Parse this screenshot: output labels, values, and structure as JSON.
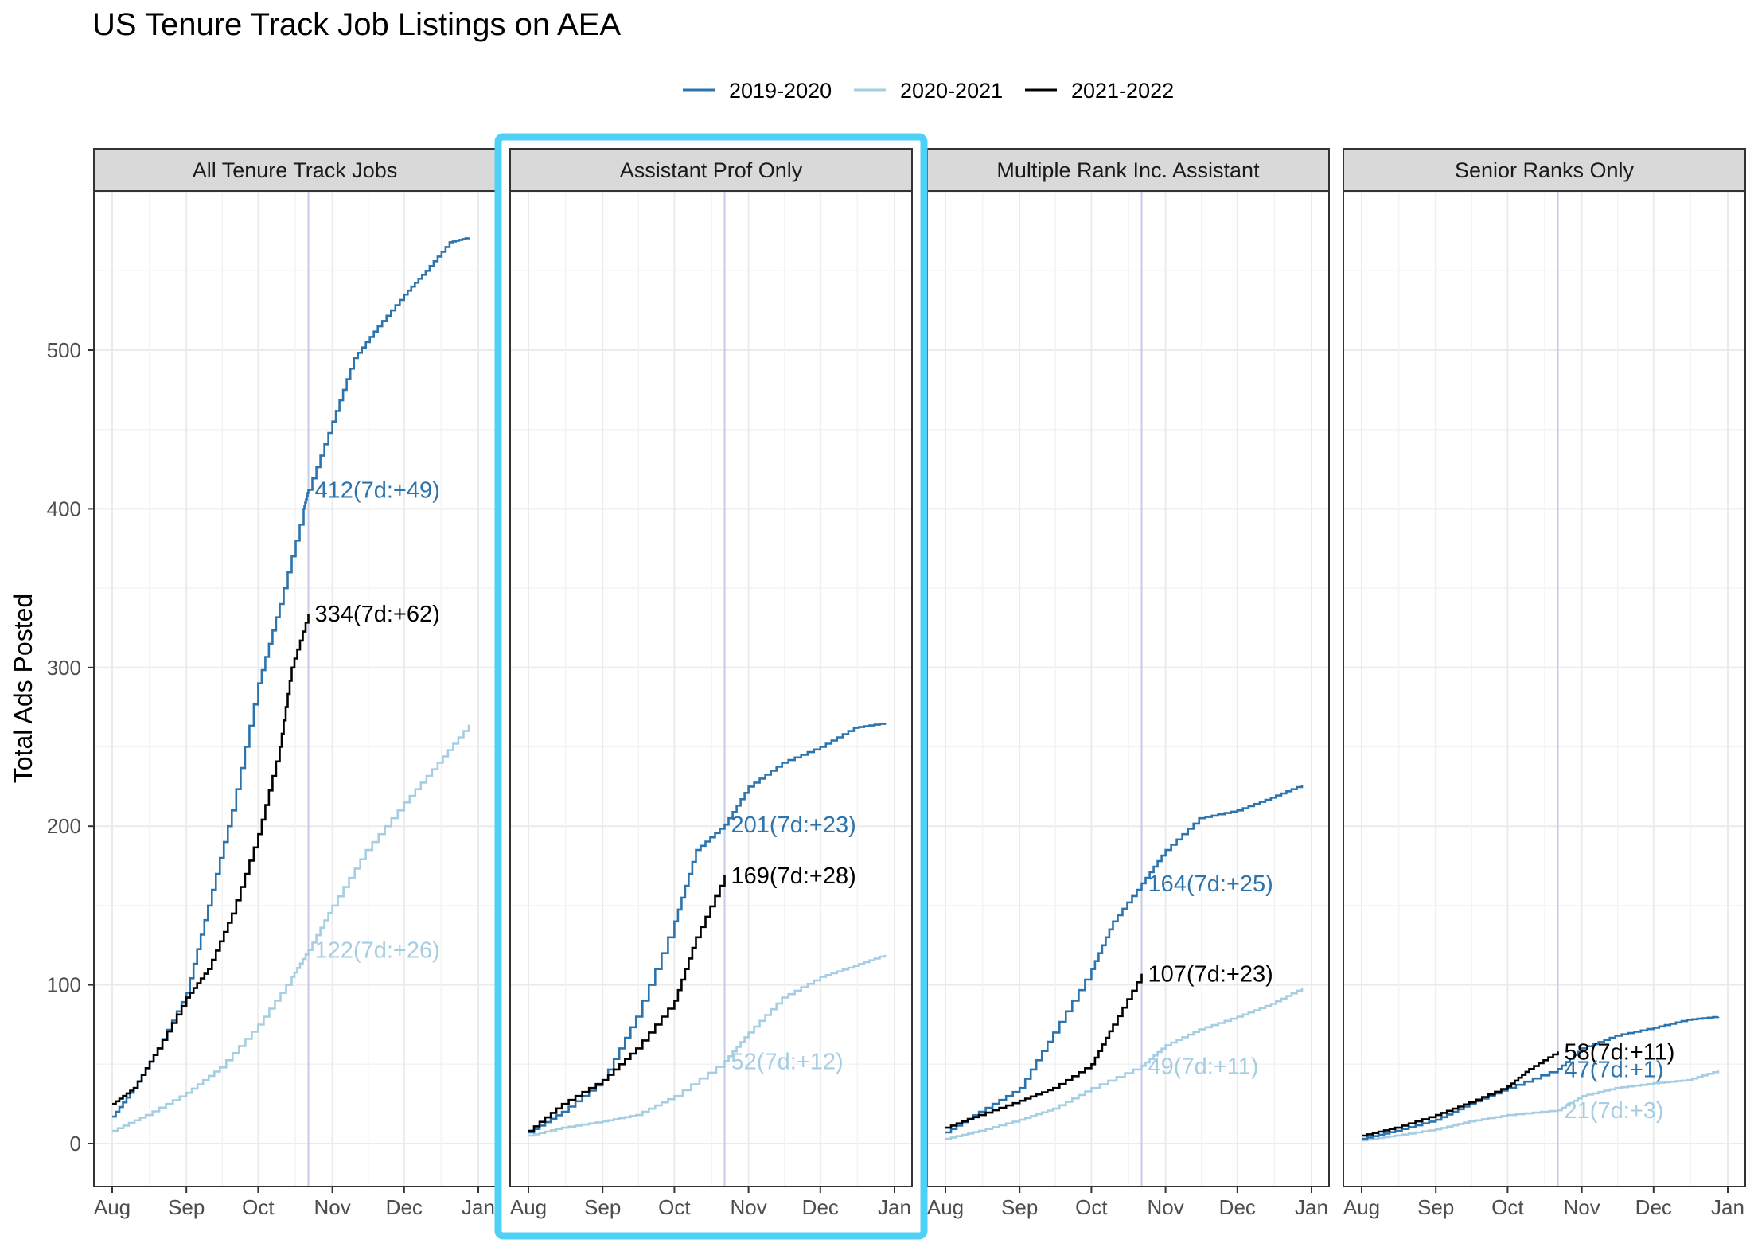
{
  "title": "US Tenure Track Job Listings on AEA",
  "ylabel": "Total Ads Posted",
  "legend": [
    {
      "label": "2019-2020",
      "color": "#2b74ad"
    },
    {
      "label": "2020-2021",
      "color": "#a6cee3"
    },
    {
      "label": "2021-2022",
      "color": "#000000"
    }
  ],
  "colors": {
    "y2019": "#2b74ad",
    "y2020": "#a6cee3",
    "y2021": "#000000",
    "highlight": "#4fd0f5",
    "vline": "#c6cbe8"
  },
  "chart_data": {
    "type": "line",
    "x_ticks": [
      "Aug",
      "Sep",
      "Oct",
      "Nov",
      "Dec",
      "Jan"
    ],
    "y_ticks": [
      0,
      100,
      200,
      300,
      400,
      500
    ],
    "ylim": [
      -27,
      600
    ],
    "x_domain": [
      "Aug 1",
      "Jan 8"
    ],
    "grid": true,
    "legend_position": "top",
    "highlighted_panel": "Assistant Prof Only",
    "reference_date": "Oct 22",
    "panels": [
      {
        "name": "All Tenure Track Jobs",
        "series": [
          {
            "name": "2019-2020",
            "x": [
              "Aug 1",
              "Aug 10",
              "Aug 20",
              "Sep 1",
              "Sep 10",
              "Sep 20",
              "Oct 1",
              "Oct 10",
              "Oct 20",
              "Oct 22",
              "Nov 1",
              "Nov 10",
              "Nov 20",
              "Dec 1",
              "Dec 10",
              "Dec 20",
              "Dec 28"
            ],
            "y": [
              17,
              35,
              60,
              95,
              150,
              210,
              290,
              340,
              400,
              412,
              455,
              495,
              515,
              535,
              550,
              568,
              571
            ]
          },
          {
            "name": "2020-2021",
            "x": [
              "Aug 1",
              "Aug 15",
              "Sep 1",
              "Sep 15",
              "Oct 1",
              "Oct 15",
              "Oct 22",
              "Nov 1",
              "Nov 15",
              "Dec 1",
              "Dec 15",
              "Dec 28"
            ],
            "y": [
              8,
              18,
              32,
              48,
              75,
              105,
              122,
              150,
              185,
              215,
              240,
              264
            ]
          },
          {
            "name": "2021-2022",
            "x": [
              "Aug 1",
              "Aug 10",
              "Aug 20",
              "Sep 1",
              "Sep 10",
              "Sep 20",
              "Oct 1",
              "Oct 10",
              "Oct 15",
              "Oct 22"
            ],
            "y": [
              25,
              35,
              60,
              92,
              110,
              145,
              195,
              250,
              300,
              334
            ]
          }
        ],
        "annotations": [
          {
            "text": "412(7d:+49)",
            "series": "2019-2020",
            "x": "Oct 22",
            "y": 412
          },
          {
            "text": "334(7d:+62)",
            "series": "2021-2022",
            "x": "Oct 22",
            "y": 334
          },
          {
            "text": "122(7d:+26)",
            "series": "2020-2021",
            "x": "Oct 22",
            "y": 122
          }
        ]
      },
      {
        "name": "Assistant Prof Only",
        "series": [
          {
            "name": "2019-2020",
            "x": [
              "Aug 1",
              "Aug 15",
              "Sep 1",
              "Sep 15",
              "Oct 1",
              "Oct 10",
              "Oct 22",
              "Nov 1",
              "Nov 15",
              "Dec 1",
              "Dec 15",
              "Dec 28"
            ],
            "y": [
              7,
              20,
              40,
              80,
              140,
              185,
              201,
              225,
              240,
              250,
              262,
              265
            ]
          },
          {
            "name": "2020-2021",
            "x": [
              "Aug 1",
              "Aug 15",
              "Sep 1",
              "Sep 15",
              "Oct 1",
              "Oct 22",
              "Nov 1",
              "Nov 15",
              "Dec 1",
              "Dec 15",
              "Dec 28"
            ],
            "y": [
              5,
              10,
              14,
              18,
              30,
              52,
              70,
              92,
              105,
              112,
              119
            ]
          },
          {
            "name": "2021-2022",
            "x": [
              "Aug 1",
              "Aug 15",
              "Sep 1",
              "Sep 15",
              "Oct 1",
              "Oct 10",
              "Oct 22"
            ],
            "y": [
              8,
              25,
              40,
              60,
              90,
              130,
              169
            ]
          }
        ],
        "annotations": [
          {
            "text": "201(7d:+23)",
            "series": "2019-2020",
            "x": "Oct 22",
            "y": 201
          },
          {
            "text": "169(7d:+28)",
            "series": "2021-2022",
            "x": "Oct 22",
            "y": 169
          },
          {
            "text": "52(7d:+12)",
            "series": "2020-2021",
            "x": "Oct 22",
            "y": 52
          }
        ]
      },
      {
        "name": "Multiple Rank Inc. Assistant",
        "series": [
          {
            "name": "2019-2020",
            "x": [
              "Aug 1",
              "Aug 15",
              "Sep 1",
              "Sep 15",
              "Oct 1",
              "Oct 10",
              "Oct 22",
              "Nov 1",
              "Nov 15",
              "Dec 1",
              "Dec 15",
              "Dec 28"
            ],
            "y": [
              7,
              20,
              35,
              70,
              110,
              140,
              164,
              185,
              205,
              210,
              218,
              226
            ]
          },
          {
            "name": "2020-2021",
            "x": [
              "Aug 1",
              "Aug 15",
              "Sep 1",
              "Sep 15",
              "Oct 1",
              "Oct 22",
              "Nov 1",
              "Nov 15",
              "Dec 1",
              "Dec 15",
              "Dec 28"
            ],
            "y": [
              3,
              8,
              15,
              22,
              35,
              49,
              62,
              72,
              80,
              88,
              98
            ]
          },
          {
            "name": "2021-2022",
            "x": [
              "Aug 1",
              "Aug 15",
              "Sep 1",
              "Sep 15",
              "Oct 1",
              "Oct 10",
              "Oct 22"
            ],
            "y": [
              10,
              18,
              27,
              35,
              50,
              75,
              107
            ]
          }
        ],
        "annotations": [
          {
            "text": "164(7d:+25)",
            "series": "2019-2020",
            "x": "Oct 22",
            "y": 164
          },
          {
            "text": "107(7d:+23)",
            "series": "2021-2022",
            "x": "Oct 22",
            "y": 107
          },
          {
            "text": "49(7d:+11)",
            "series": "2020-2021",
            "x": "Oct 22",
            "y": 49
          }
        ]
      },
      {
        "name": "Senior Ranks Only",
        "series": [
          {
            "name": "2019-2020",
            "x": [
              "Aug 1",
              "Aug 15",
              "Sep 1",
              "Sep 15",
              "Oct 1",
              "Oct 22",
              "Nov 1",
              "Nov 15",
              "Dec 1",
              "Dec 15",
              "Dec 28"
            ],
            "y": [
              3,
              8,
              15,
              25,
              35,
              47,
              60,
              68,
              73,
              78,
              80
            ]
          },
          {
            "name": "2020-2021",
            "x": [
              "Aug 1",
              "Aug 15",
              "Sep 1",
              "Sep 15",
              "Oct 1",
              "Oct 22",
              "Nov 1",
              "Nov 15",
              "Dec 1",
              "Dec 15",
              "Dec 28"
            ],
            "y": [
              2,
              5,
              9,
              14,
              18,
              21,
              30,
              35,
              38,
              40,
              46
            ]
          },
          {
            "name": "2021-2022",
            "x": [
              "Aug 1",
              "Aug 15",
              "Sep 1",
              "Sep 15",
              "Oct 1",
              "Oct 10",
              "Oct 22"
            ],
            "y": [
              5,
              10,
              18,
              26,
              36,
              47,
              58
            ]
          }
        ],
        "annotations": [
          {
            "text": "58(7d:+11)",
            "series": "2021-2022",
            "x": "Oct 22",
            "y": 58
          },
          {
            "text": "47(7d:+1)",
            "series": "2019-2020",
            "x": "Oct 22",
            "y": 47
          },
          {
            "text": "21(7d:+3)",
            "series": "2020-2021",
            "x": "Oct 22",
            "y": 21
          }
        ]
      }
    ]
  }
}
